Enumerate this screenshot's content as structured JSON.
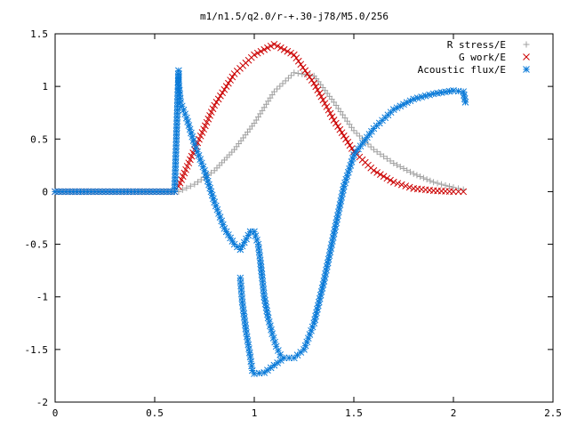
{
  "chart_data": {
    "type": "scatter",
    "title": "m1/n1.5/q2.0/r-+.30-j78/M5.0/256",
    "xlabel": "",
    "ylabel": "",
    "xlim": [
      0,
      2.5
    ],
    "ylim": [
      -2,
      1.5
    ],
    "x_ticks": [
      0,
      0.5,
      1,
      1.5,
      2,
      2.5
    ],
    "x_tick_labels": [
      "0",
      "0.5",
      "1",
      "1.5",
      "2",
      "2.5"
    ],
    "y_ticks": [
      -2,
      -1.5,
      -1,
      -0.5,
      0,
      0.5,
      1,
      1.5
    ],
    "y_tick_labels": [
      "-2",
      "-1.5",
      "-1",
      "-0.5",
      "0",
      "0.5",
      "1",
      "1.5"
    ],
    "grid": false,
    "legend_position": "top-right",
    "series": [
      {
        "name": "R stress/E",
        "marker": "plus",
        "color": "#a0a0a0",
        "points": [
          [
            0.0,
            0.0
          ],
          [
            0.6,
            0.0
          ],
          [
            0.62,
            0.0
          ],
          [
            0.7,
            0.07
          ],
          [
            0.8,
            0.2
          ],
          [
            0.9,
            0.4
          ],
          [
            1.0,
            0.65
          ],
          [
            1.1,
            0.95
          ],
          [
            1.2,
            1.13
          ],
          [
            1.3,
            1.1
          ],
          [
            1.4,
            0.85
          ],
          [
            1.5,
            0.58
          ],
          [
            1.6,
            0.4
          ],
          [
            1.7,
            0.27
          ],
          [
            1.8,
            0.17
          ],
          [
            1.9,
            0.09
          ],
          [
            2.0,
            0.04
          ],
          [
            2.05,
            0.02
          ]
        ]
      },
      {
        "name": "G work/E",
        "marker": "cross",
        "color": "#cc0000",
        "points": [
          [
            0.0,
            0.0
          ],
          [
            0.6,
            0.0
          ],
          [
            0.62,
            0.05
          ],
          [
            0.7,
            0.4
          ],
          [
            0.8,
            0.82
          ],
          [
            0.9,
            1.12
          ],
          [
            1.0,
            1.3
          ],
          [
            1.1,
            1.4
          ],
          [
            1.2,
            1.3
          ],
          [
            1.3,
            1.03
          ],
          [
            1.4,
            0.68
          ],
          [
            1.5,
            0.38
          ],
          [
            1.6,
            0.2
          ],
          [
            1.7,
            0.09
          ],
          [
            1.8,
            0.03
          ],
          [
            1.9,
            0.01
          ],
          [
            2.0,
            0.0
          ],
          [
            2.05,
            0.0
          ]
        ]
      },
      {
        "name": "Acoustic flux/E",
        "marker": "star",
        "color": "#0a7ad8",
        "points": [
          [
            0.0,
            0.0
          ],
          [
            0.6,
            0.0
          ],
          [
            0.62,
            1.15
          ],
          [
            0.62,
            1.04
          ],
          [
            0.63,
            0.85
          ],
          [
            0.66,
            0.7
          ],
          [
            0.7,
            0.45
          ],
          [
            0.75,
            0.2
          ],
          [
            0.8,
            -0.1
          ],
          [
            0.85,
            -0.35
          ],
          [
            0.9,
            -0.5
          ],
          [
            0.93,
            -0.55
          ],
          [
            0.96,
            -0.45
          ],
          [
            0.98,
            -0.38
          ],
          [
            0.93,
            -0.82
          ],
          [
            0.94,
            -1.05
          ],
          [
            0.96,
            -1.34
          ],
          [
            0.98,
            -1.57
          ],
          [
            0.99,
            -1.7
          ],
          [
            1.0,
            -1.73
          ],
          [
            1.05,
            -1.72
          ],
          [
            1.1,
            -1.65
          ],
          [
            1.15,
            -1.58
          ],
          [
            1.2,
            -1.58
          ],
          [
            1.25,
            -1.5
          ],
          [
            1.3,
            -1.25
          ],
          [
            1.35,
            -0.85
          ],
          [
            1.4,
            -0.4
          ],
          [
            1.45,
            0.05
          ],
          [
            1.5,
            0.35
          ],
          [
            1.6,
            0.6
          ],
          [
            1.7,
            0.78
          ],
          [
            1.8,
            0.88
          ],
          [
            1.9,
            0.93
          ],
          [
            2.0,
            0.96
          ],
          [
            2.05,
            0.95
          ],
          [
            2.06,
            0.85
          ],
          [
            1.0,
            -0.38
          ],
          [
            1.02,
            -0.5
          ],
          [
            1.03,
            -0.65
          ],
          [
            1.04,
            -0.82
          ],
          [
            1.05,
            -1.0
          ],
          [
            1.07,
            -1.2
          ],
          [
            1.09,
            -1.35
          ],
          [
            1.11,
            -1.47
          ],
          [
            1.13,
            -1.55
          ]
        ]
      }
    ]
  }
}
